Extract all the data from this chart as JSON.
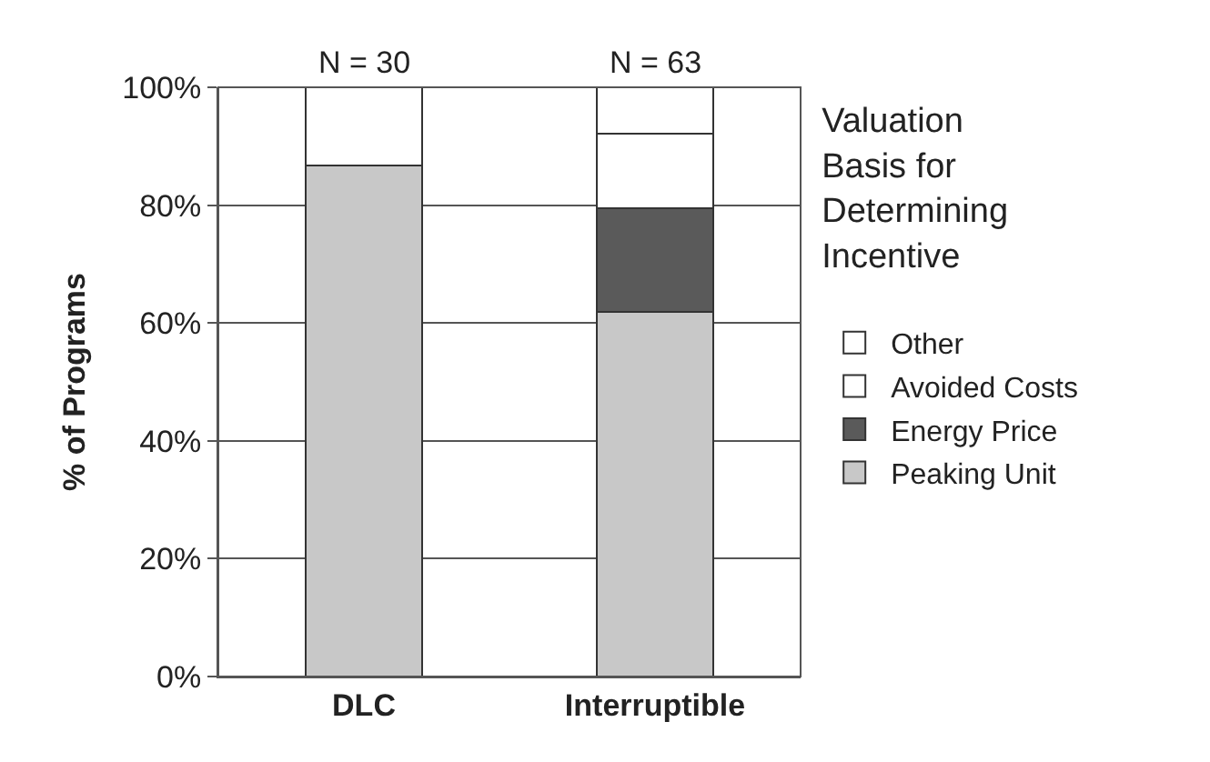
{
  "chart_data": {
    "type": "bar",
    "stacked": true,
    "ylabel": "% of Programs",
    "legend_title": "Valuation Basis for Determining Incentive",
    "categories": [
      "DLC",
      "Interruptible"
    ],
    "series": [
      {
        "name": "Peaking Unit",
        "color": "#c8c8c8",
        "values": [
          86.7,
          61.9
        ]
      },
      {
        "name": "Energy Price",
        "color": "#5a5a5a",
        "values": [
          null,
          17.5
        ]
      },
      {
        "name": "Avoided Costs",
        "color": "#ffffff",
        "values": [
          13.3,
          12.7
        ]
      },
      {
        "name": "Other",
        "color": "#ffffff",
        "values": [
          null,
          7.9
        ]
      }
    ],
    "ylim": [
      0,
      100
    ],
    "yticks": [
      {
        "value": 0,
        "label": "0%"
      },
      {
        "value": 20,
        "label": "20%"
      },
      {
        "value": 40,
        "label": "40%"
      },
      {
        "value": 60,
        "label": "60%"
      },
      {
        "value": 80,
        "label": "80%"
      },
      {
        "value": 100,
        "label": "100%"
      }
    ],
    "grid": "y",
    "legend": "right",
    "annotations": [
      "N = 30",
      "N = 63"
    ]
  }
}
